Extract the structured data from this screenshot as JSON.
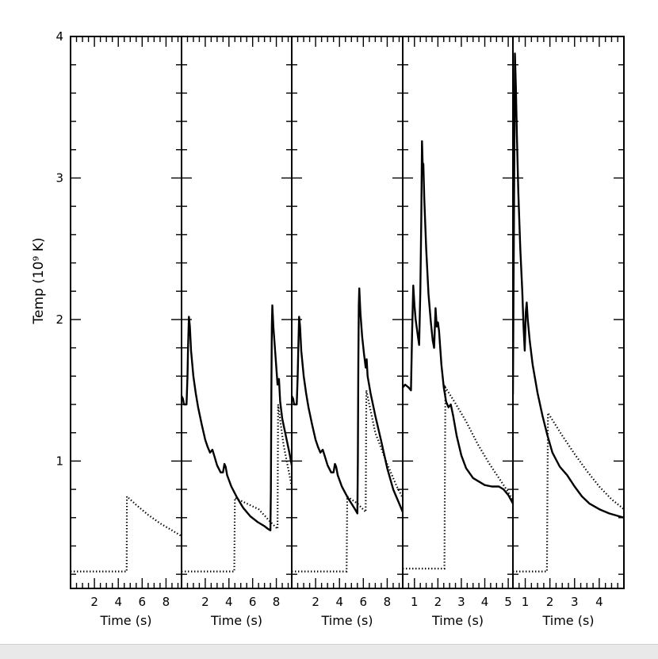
{
  "chart_data": {
    "type": "line",
    "ylabel": "Temp (10⁹ K)",
    "ylim": [
      0.1,
      4.0
    ],
    "y_major_ticks": [
      1,
      2,
      3,
      4
    ],
    "y_minor_step": 0.2,
    "panels": [
      {
        "xlim": [
          0,
          9.3
        ],
        "xlabel": "Time (s)",
        "x_major_ticks": [
          2,
          4,
          6,
          8
        ],
        "x_minor_step": 0.5,
        "series": [
          {
            "style": "dotted",
            "points": [
              [
                0,
                0.22
              ],
              [
                4.7,
                0.22
              ],
              [
                4.72,
                0.75
              ],
              [
                5.5,
                0.69
              ],
              [
                6.5,
                0.62
              ],
              [
                7.5,
                0.56
              ],
              [
                8.5,
                0.51
              ],
              [
                9.3,
                0.47
              ]
            ]
          }
        ]
      },
      {
        "xlim": [
          0,
          9.3
        ],
        "xlabel": "Time (s)",
        "x_major_ticks": [
          2,
          4,
          6,
          8
        ],
        "x_minor_step": 0.5,
        "series": [
          {
            "style": "solid",
            "points": [
              [
                0,
                1.46
              ],
              [
                0.12,
                1.44
              ],
              [
                0.2,
                1.4
              ],
              [
                0.42,
                1.4
              ],
              [
                0.5,
                1.6
              ],
              [
                0.55,
                1.8
              ],
              [
                0.62,
                2.02
              ],
              [
                0.7,
                1.95
              ],
              [
                0.8,
                1.78
              ],
              [
                1.0,
                1.6
              ],
              [
                1.2,
                1.48
              ],
              [
                1.4,
                1.38
              ],
              [
                1.7,
                1.26
              ],
              [
                2.0,
                1.15
              ],
              [
                2.2,
                1.1
              ],
              [
                2.4,
                1.06
              ],
              [
                2.6,
                1.08
              ],
              [
                2.75,
                1.04
              ],
              [
                3.0,
                0.97
              ],
              [
                3.3,
                0.92
              ],
              [
                3.5,
                0.92
              ],
              [
                3.62,
                0.98
              ],
              [
                3.72,
                0.96
              ],
              [
                3.85,
                0.9
              ],
              [
                4.2,
                0.82
              ],
              [
                4.7,
                0.74
              ],
              [
                5.2,
                0.67
              ],
              [
                5.8,
                0.61
              ],
              [
                6.4,
                0.57
              ],
              [
                7.0,
                0.54
              ],
              [
                7.3,
                0.52
              ],
              [
                7.5,
                0.51
              ],
              [
                7.54,
                0.8
              ],
              [
                7.58,
                1.5
              ],
              [
                7.62,
                1.95
              ],
              [
                7.66,
                2.1
              ],
              [
                7.75,
                1.95
              ],
              [
                7.95,
                1.72
              ],
              [
                8.1,
                1.54
              ],
              [
                8.22,
                1.58
              ],
              [
                8.32,
                1.42
              ],
              [
                8.5,
                1.3
              ],
              [
                8.8,
                1.18
              ],
              [
                9.1,
                1.06
              ],
              [
                9.3,
                0.97
              ]
            ]
          },
          {
            "style": "dotted",
            "points": [
              [
                0,
                0.22
              ],
              [
                4.45,
                0.22
              ],
              [
                4.5,
                0.74
              ],
              [
                5.5,
                0.7
              ],
              [
                6.5,
                0.66
              ],
              [
                7.5,
                0.57
              ],
              [
                8.1,
                0.52
              ],
              [
                8.15,
                1.4
              ],
              [
                8.6,
                1.12
              ],
              [
                9.3,
                0.82
              ]
            ]
          }
        ]
      },
      {
        "xlim": [
          0,
          9.3
        ],
        "xlabel": "Time (s)",
        "x_major_ticks": [
          2,
          4,
          6,
          8
        ],
        "x_minor_step": 0.5,
        "series": [
          {
            "style": "solid",
            "points": [
              [
                0,
                1.46
              ],
              [
                0.12,
                1.44
              ],
              [
                0.2,
                1.4
              ],
              [
                0.42,
                1.4
              ],
              [
                0.5,
                1.6
              ],
              [
                0.55,
                1.8
              ],
              [
                0.62,
                2.02
              ],
              [
                0.7,
                1.95
              ],
              [
                0.8,
                1.78
              ],
              [
                1.0,
                1.6
              ],
              [
                1.2,
                1.48
              ],
              [
                1.4,
                1.38
              ],
              [
                1.7,
                1.26
              ],
              [
                2.0,
                1.15
              ],
              [
                2.2,
                1.1
              ],
              [
                2.4,
                1.06
              ],
              [
                2.6,
                1.08
              ],
              [
                2.75,
                1.04
              ],
              [
                3.0,
                0.97
              ],
              [
                3.3,
                0.92
              ],
              [
                3.5,
                0.92
              ],
              [
                3.62,
                0.98
              ],
              [
                3.72,
                0.96
              ],
              [
                3.85,
                0.9
              ],
              [
                4.2,
                0.82
              ],
              [
                4.7,
                0.74
              ],
              [
                5.0,
                0.7
              ],
              [
                5.3,
                0.66
              ],
              [
                5.5,
                0.63
              ],
              [
                5.54,
                1.0
              ],
              [
                5.58,
                1.7
              ],
              [
                5.62,
                2.1
              ],
              [
                5.66,
                2.22
              ],
              [
                5.75,
                2.05
              ],
              [
                5.9,
                1.88
              ],
              [
                6.05,
                1.76
              ],
              [
                6.2,
                1.66
              ],
              [
                6.28,
                1.72
              ],
              [
                6.36,
                1.6
              ],
              [
                6.6,
                1.48
              ],
              [
                7.0,
                1.32
              ],
              [
                7.5,
                1.14
              ],
              [
                8.0,
                0.95
              ],
              [
                8.5,
                0.8
              ],
              [
                9.0,
                0.7
              ],
              [
                9.3,
                0.64
              ]
            ]
          },
          {
            "style": "dotted",
            "points": [
              [
                0,
                0.22
              ],
              [
                4.6,
                0.22
              ],
              [
                4.65,
                0.75
              ],
              [
                5.5,
                0.7
              ],
              [
                6.2,
                0.64
              ],
              [
                6.25,
                1.5
              ],
              [
                7.0,
                1.2
              ],
              [
                8.0,
                0.98
              ],
              [
                8.8,
                0.82
              ],
              [
                9.3,
                0.74
              ]
            ]
          }
        ]
      },
      {
        "xlim": [
          0.5,
          5.2
        ],
        "xlabel": "Time (s)",
        "x_major_ticks": [
          1,
          2,
          3,
          4,
          5
        ],
        "x_minor_step": 0.25,
        "series": [
          {
            "style": "solid",
            "points": [
              [
                0.5,
                1.52
              ],
              [
                0.6,
                1.54
              ],
              [
                0.75,
                1.52
              ],
              [
                0.85,
                1.5
              ],
              [
                0.9,
                1.9
              ],
              [
                0.95,
                2.24
              ],
              [
                1.0,
                2.1
              ],
              [
                1.05,
                2.0
              ],
              [
                1.15,
                1.88
              ],
              [
                1.2,
                1.82
              ],
              [
                1.25,
                2.2
              ],
              [
                1.29,
                2.7
              ],
              [
                1.32,
                3.26
              ],
              [
                1.36,
                3.05
              ],
              [
                1.38,
                3.1
              ],
              [
                1.42,
                2.85
              ],
              [
                1.5,
                2.5
              ],
              [
                1.6,
                2.18
              ],
              [
                1.7,
                1.98
              ],
              [
                1.78,
                1.85
              ],
              [
                1.84,
                1.8
              ],
              [
                1.9,
                2.08
              ],
              [
                1.95,
                1.95
              ],
              [
                2.0,
                1.98
              ],
              [
                2.05,
                1.92
              ],
              [
                2.15,
                1.68
              ],
              [
                2.25,
                1.52
              ],
              [
                2.35,
                1.42
              ],
              [
                2.45,
                1.38
              ],
              [
                2.55,
                1.4
              ],
              [
                2.65,
                1.32
              ],
              [
                2.8,
                1.18
              ],
              [
                3.0,
                1.04
              ],
              [
                3.2,
                0.95
              ],
              [
                3.5,
                0.88
              ],
              [
                3.8,
                0.85
              ],
              [
                4.0,
                0.83
              ],
              [
                4.3,
                0.82
              ],
              [
                4.6,
                0.82
              ],
              [
                4.8,
                0.8
              ],
              [
                5.0,
                0.76
              ],
              [
                5.2,
                0.7
              ]
            ]
          },
          {
            "style": "dotted",
            "points": [
              [
                0.5,
                0.24
              ],
              [
                2.28,
                0.24
              ],
              [
                2.32,
                1.52
              ],
              [
                2.7,
                1.42
              ],
              [
                3.2,
                1.28
              ],
              [
                3.7,
                1.12
              ],
              [
                4.2,
                0.98
              ],
              [
                4.6,
                0.88
              ],
              [
                5.0,
                0.78
              ],
              [
                5.2,
                0.72
              ]
            ]
          }
        ]
      },
      {
        "xlim": [
          0.5,
          5.0
        ],
        "xlabel": "Time (s)",
        "x_major_ticks": [
          1,
          2,
          3,
          4
        ],
        "x_minor_step": 0.25,
        "series": [
          {
            "style": "solid",
            "points": [
              [
                0.5,
                1.47
              ],
              [
                0.55,
                3.0
              ],
              [
                0.58,
                3.88
              ],
              [
                0.62,
                3.65
              ],
              [
                0.66,
                3.3
              ],
              [
                0.72,
                2.9
              ],
              [
                0.8,
                2.5
              ],
              [
                0.88,
                2.2
              ],
              [
                0.93,
                1.95
              ],
              [
                0.98,
                1.78
              ],
              [
                1.02,
                2.05
              ],
              [
                1.06,
                2.12
              ],
              [
                1.1,
                2.0
              ],
              [
                1.18,
                1.85
              ],
              [
                1.3,
                1.68
              ],
              [
                1.5,
                1.48
              ],
              [
                1.7,
                1.32
              ],
              [
                1.9,
                1.18
              ],
              [
                2.1,
                1.06
              ],
              [
                2.4,
                0.96
              ],
              [
                2.7,
                0.9
              ],
              [
                3.0,
                0.82
              ],
              [
                3.3,
                0.75
              ],
              [
                3.6,
                0.7
              ],
              [
                4.0,
                0.66
              ],
              [
                4.4,
                0.63
              ],
              [
                4.8,
                0.61
              ],
              [
                5.0,
                0.6
              ]
            ]
          },
          {
            "style": "dotted",
            "points": [
              [
                0.5,
                0.22
              ],
              [
                1.88,
                0.22
              ],
              [
                1.92,
                1.34
              ],
              [
                2.5,
                1.18
              ],
              [
                3.0,
                1.05
              ],
              [
                3.5,
                0.93
              ],
              [
                4.0,
                0.82
              ],
              [
                4.5,
                0.73
              ],
              [
                5.0,
                0.66
              ]
            ]
          }
        ]
      }
    ]
  }
}
